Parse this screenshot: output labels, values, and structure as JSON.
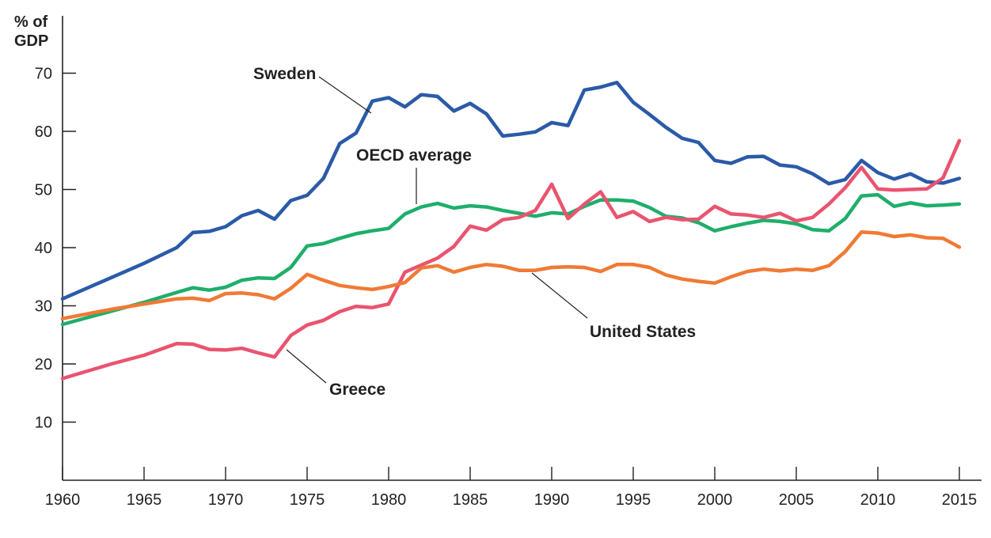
{
  "chart_data": {
    "type": "line",
    "title": "",
    "ylabel_lines": [
      "% of",
      "GDP"
    ],
    "xlabel": "",
    "xlim": [
      1960,
      2016
    ],
    "ylim": [
      0,
      72
    ],
    "x_ticks": [
      1960,
      1965,
      1970,
      1975,
      1980,
      1985,
      1990,
      1995,
      2000,
      2005,
      2010,
      2015
    ],
    "y_ticks": [
      10,
      20,
      30,
      40,
      50,
      60,
      70
    ],
    "grid": false,
    "legend": "inline labels",
    "series": [
      {
        "name": "Sweden",
        "color": "#2b5aa8",
        "points": [
          [
            1960,
            31.2
          ],
          [
            1965,
            37.3
          ],
          [
            1967,
            40
          ],
          [
            1968,
            42.6
          ],
          [
            1969,
            42.8
          ],
          [
            1970,
            43.6
          ],
          [
            1971,
            45.5
          ],
          [
            1972,
            46.4
          ],
          [
            1973,
            44.9
          ],
          [
            1974,
            48.1
          ],
          [
            1975,
            49
          ],
          [
            1976,
            51.9
          ],
          [
            1977,
            57.9
          ],
          [
            1978,
            59.7
          ],
          [
            1979,
            65.2
          ],
          [
            1980,
            65.8
          ],
          [
            1981,
            64.2
          ],
          [
            1982,
            66.3
          ],
          [
            1983,
            66
          ],
          [
            1984,
            63.5
          ],
          [
            1985,
            64.8
          ],
          [
            1986,
            63
          ],
          [
            1987,
            59.2
          ],
          [
            1988,
            59.5
          ],
          [
            1989,
            59.9
          ],
          [
            1990,
            61.5
          ],
          [
            1991,
            61
          ],
          [
            1992,
            67.1
          ],
          [
            1993,
            67.6
          ],
          [
            1994,
            68.4
          ],
          [
            1995,
            65
          ],
          [
            1996,
            62.9
          ],
          [
            1997,
            60.7
          ],
          [
            1998,
            58.8
          ],
          [
            1999,
            58.1
          ],
          [
            2000,
            55
          ],
          [
            2001,
            54.5
          ],
          [
            2002,
            55.6
          ],
          [
            2003,
            55.7
          ],
          [
            2004,
            54.2
          ],
          [
            2005,
            53.9
          ],
          [
            2006,
            52.7
          ],
          [
            2007,
            51
          ],
          [
            2008,
            51.7
          ],
          [
            2009,
            55
          ],
          [
            2010,
            52.9
          ],
          [
            2011,
            51.8
          ],
          [
            2012,
            52.7
          ],
          [
            2013,
            51.3
          ],
          [
            2014,
            51.1
          ],
          [
            2015,
            51.9
          ]
        ]
      },
      {
        "name": "OECD average",
        "color": "#1fae6b",
        "points": [
          [
            1960,
            26.8
          ],
          [
            1965,
            30.6
          ],
          [
            1967,
            32.3
          ],
          [
            1968,
            33.1
          ],
          [
            1969,
            32.7
          ],
          [
            1970,
            33.2
          ],
          [
            1971,
            34.4
          ],
          [
            1972,
            34.8
          ],
          [
            1973,
            34.7
          ],
          [
            1974,
            36.6
          ],
          [
            1975,
            40.3
          ],
          [
            1976,
            40.7
          ],
          [
            1977,
            41.6
          ],
          [
            1978,
            42.4
          ],
          [
            1979,
            42.9
          ],
          [
            1980,
            43.3
          ],
          [
            1981,
            45.8
          ],
          [
            1982,
            47
          ],
          [
            1983,
            47.6
          ],
          [
            1984,
            46.8
          ],
          [
            1985,
            47.2
          ],
          [
            1986,
            47
          ],
          [
            1987,
            46.4
          ],
          [
            1988,
            45.9
          ],
          [
            1989,
            45.4
          ],
          [
            1990,
            46
          ],
          [
            1991,
            45.8
          ],
          [
            1992,
            47.1
          ],
          [
            1993,
            48.2
          ],
          [
            1994,
            48.2
          ],
          [
            1995,
            48
          ],
          [
            1996,
            46.9
          ],
          [
            1997,
            45.4
          ],
          [
            1998,
            45.1
          ],
          [
            1999,
            44.3
          ],
          [
            2000,
            42.9
          ],
          [
            2001,
            43.6
          ],
          [
            2002,
            44.2
          ],
          [
            2003,
            44.7
          ],
          [
            2004,
            44.5
          ],
          [
            2005,
            44.1
          ],
          [
            2006,
            43.1
          ],
          [
            2007,
            42.9
          ],
          [
            2008,
            45
          ],
          [
            2009,
            48.9
          ],
          [
            2010,
            49.1
          ],
          [
            2011,
            47.1
          ],
          [
            2012,
            47.7
          ],
          [
            2013,
            47.2
          ],
          [
            2014,
            47.3
          ],
          [
            2015,
            47.5
          ]
        ]
      },
      {
        "name": "Greece",
        "color": "#e9546f",
        "points": [
          [
            1960,
            17.5
          ],
          [
            1963,
            20
          ],
          [
            1965,
            21.5
          ],
          [
            1967,
            23.5
          ],
          [
            1968,
            23.4
          ],
          [
            1969,
            22.5
          ],
          [
            1970,
            22.4
          ],
          [
            1971,
            22.7
          ],
          [
            1972,
            21.9
          ],
          [
            1973,
            21.2
          ],
          [
            1974,
            24.9
          ],
          [
            1975,
            26.7
          ],
          [
            1976,
            27.5
          ],
          [
            1977,
            29
          ],
          [
            1978,
            29.9
          ],
          [
            1979,
            29.7
          ],
          [
            1980,
            30.3
          ],
          [
            1981,
            35.8
          ],
          [
            1982,
            37
          ],
          [
            1983,
            38.2
          ],
          [
            1984,
            40.2
          ],
          [
            1985,
            43.7
          ],
          [
            1986,
            43
          ],
          [
            1987,
            44.8
          ],
          [
            1988,
            45.2
          ],
          [
            1989,
            46.4
          ],
          [
            1990,
            50.9
          ],
          [
            1991,
            45
          ],
          [
            1992,
            47.5
          ],
          [
            1993,
            49.6
          ],
          [
            1994,
            45.2
          ],
          [
            1995,
            46.2
          ],
          [
            1996,
            44.5
          ],
          [
            1997,
            45.2
          ],
          [
            1998,
            44.8
          ],
          [
            1999,
            44.9
          ],
          [
            2000,
            47.1
          ],
          [
            2001,
            45.8
          ],
          [
            2002,
            45.6
          ],
          [
            2003,
            45.2
          ],
          [
            2004,
            45.9
          ],
          [
            2005,
            44.6
          ],
          [
            2006,
            45.2
          ],
          [
            2007,
            47.5
          ],
          [
            2008,
            50.3
          ],
          [
            2009,
            53.8
          ],
          [
            2010,
            50.1
          ],
          [
            2011,
            49.9
          ],
          [
            2012,
            50
          ],
          [
            2013,
            50.1
          ],
          [
            2014,
            52
          ],
          [
            2015,
            58.4
          ]
        ]
      },
      {
        "name": "United States",
        "color": "#f07a35",
        "points": [
          [
            1960,
            27.8
          ],
          [
            1963,
            29.4
          ],
          [
            1965,
            30.3
          ],
          [
            1967,
            31.2
          ],
          [
            1968,
            31.3
          ],
          [
            1969,
            30.9
          ],
          [
            1970,
            32.1
          ],
          [
            1971,
            32.2
          ],
          [
            1972,
            31.9
          ],
          [
            1973,
            31.2
          ],
          [
            1974,
            33
          ],
          [
            1975,
            35.4
          ],
          [
            1976,
            34.4
          ],
          [
            1977,
            33.5
          ],
          [
            1978,
            33.1
          ],
          [
            1979,
            32.8
          ],
          [
            1980,
            33.3
          ],
          [
            1981,
            34
          ],
          [
            1982,
            36.5
          ],
          [
            1983,
            36.9
          ],
          [
            1984,
            35.8
          ],
          [
            1985,
            36.6
          ],
          [
            1986,
            37.1
          ],
          [
            1987,
            36.8
          ],
          [
            1988,
            36.1
          ],
          [
            1989,
            36.1
          ],
          [
            1990,
            36.6
          ],
          [
            1991,
            36.7
          ],
          [
            1992,
            36.6
          ],
          [
            1993,
            35.9
          ],
          [
            1994,
            37.1
          ],
          [
            1995,
            37.1
          ],
          [
            1996,
            36.6
          ],
          [
            1997,
            35.3
          ],
          [
            1998,
            34.6
          ],
          [
            1999,
            34.2
          ],
          [
            2000,
            33.9
          ],
          [
            2001,
            35
          ],
          [
            2002,
            35.9
          ],
          [
            2003,
            36.3
          ],
          [
            2004,
            36
          ],
          [
            2005,
            36.3
          ],
          [
            2006,
            36.1
          ],
          [
            2007,
            36.9
          ],
          [
            2008,
            39.3
          ],
          [
            2009,
            42.7
          ],
          [
            2010,
            42.5
          ],
          [
            2011,
            41.9
          ],
          [
            2012,
            42.2
          ],
          [
            2013,
            41.7
          ],
          [
            2014,
            41.6
          ],
          [
            2015,
            40.1
          ]
        ]
      }
    ]
  }
}
